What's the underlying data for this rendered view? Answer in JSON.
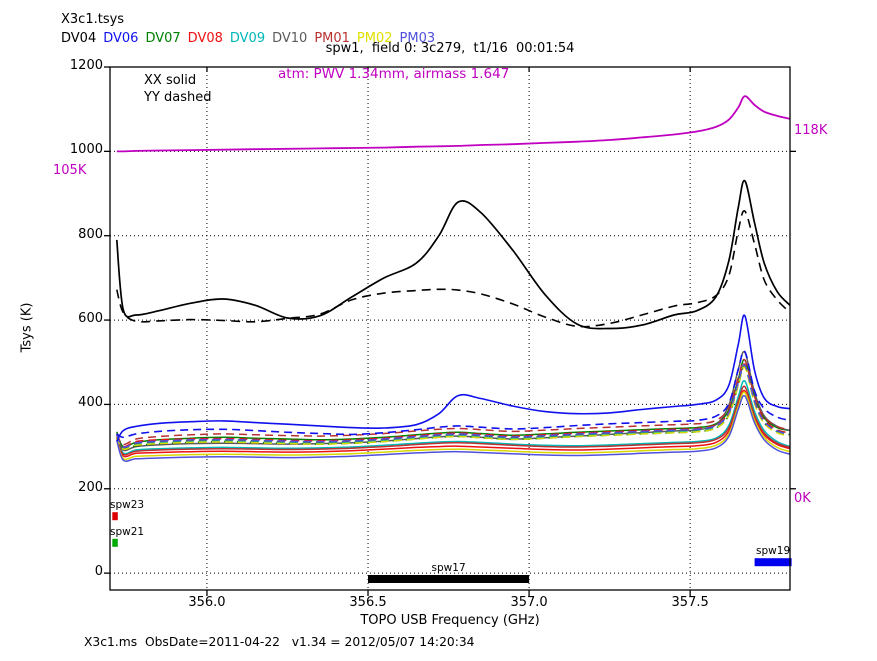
{
  "header": {
    "title": "X3c1.tsys",
    "antennas": [
      {
        "label": "DV04",
        "color": "#000000"
      },
      {
        "label": "DV06",
        "color": "#1111ee"
      },
      {
        "label": "DV07",
        "color": "#008000"
      },
      {
        "label": "DV08",
        "color": "#ee1111"
      },
      {
        "label": "DV09",
        "color": "#00b8b8"
      },
      {
        "label": "DV10",
        "color": "#5a5a5a"
      },
      {
        "label": "PM01",
        "color": "#b83232"
      },
      {
        "label": "PM02",
        "color": "#e0e000"
      },
      {
        "label": "PM03",
        "color": "#5050dd"
      }
    ],
    "subtitle": "spw1,  field 0: 3c279,  t1/16  00:01:54"
  },
  "annotations": {
    "atm_note": "atm: PWV 1.34mm, airmass 1.647",
    "xx_solid": "XX solid",
    "yy_dashed": "YY dashed",
    "atm_left_label": "105K",
    "atm_right_top_label": "118K",
    "atm_right_bottom_label": "0K"
  },
  "footer": "X3c1.ms  ObsDate=2011-04-22   v1.34 = 2012/05/07 14:20:34",
  "chart_data": {
    "type": "line",
    "title": "spw1,  field 0: 3c279,  t1/16  00:01:54",
    "xlabel": "TOPO USB Frequency (GHz)",
    "ylabel": "Tsys (K)",
    "xlim": [
      355.699,
      357.81
    ],
    "ylim": [
      -40,
      1200
    ],
    "x_ticks": [
      356.0,
      356.5,
      357.0,
      357.5
    ],
    "x_tick_labels": [
      "356.0",
      "356.5",
      "357.0",
      "357.5"
    ],
    "y_ticks": [
      0,
      200,
      400,
      600,
      800,
      1000,
      1200
    ],
    "y_tick_labels": [
      "0",
      "200",
      "400",
      "600",
      "800",
      "1000",
      "1200"
    ],
    "grid": true,
    "legend_position": "top-left-outside",
    "atm_axis": {
      "ticks": [
        {
          "tsys": 1000,
          "label": "118K"
        },
        {
          "tsys": 200,
          "label": "0K"
        }
      ]
    },
    "x": [
      355.72,
      355.74,
      355.78,
      355.85,
      355.95,
      356.05,
      356.15,
      356.25,
      356.35,
      356.45,
      356.55,
      356.65,
      356.72,
      356.78,
      356.85,
      356.95,
      357.05,
      357.15,
      357.25,
      357.35,
      357.45,
      357.52,
      357.58,
      357.62,
      357.65,
      357.67,
      357.7,
      357.73,
      357.77,
      357.81
    ],
    "series": [
      {
        "name": "DV07 XX",
        "antenna": "DV07",
        "pol": "XX",
        "color": "#008000",
        "dash": "",
        "width": 1.5,
        "y": [
          335,
          300,
          310,
          316,
          320,
          322,
          320,
          318,
          316,
          318,
          322,
          328,
          332,
          334,
          331,
          327,
          330,
          334,
          337,
          340,
          343,
          345,
          354,
          387,
          462,
          505,
          420,
          368,
          345,
          338
        ]
      },
      {
        "name": "DV08 XX",
        "antenna": "DV08",
        "pol": "XX",
        "color": "#ee1111",
        "dash": "",
        "width": 1.5,
        "y": [
          320,
          278,
          284,
          286,
          288,
          289,
          288,
          287,
          288,
          290,
          294,
          298,
          300,
          301,
          299,
          296,
          293,
          292,
          294,
          297,
          300,
          302,
          310,
          337,
          402,
          432,
          368,
          328,
          305,
          295
        ]
      },
      {
        "name": "DV09 XX",
        "antenna": "DV09",
        "pol": "XX",
        "color": "#00b8b8",
        "dash": "",
        "width": 1.5,
        "y": [
          330,
          285,
          292,
          295,
          297,
          298,
          297,
          296,
          297,
          299,
          303,
          308,
          311,
          312,
          310,
          306,
          303,
          302,
          304,
          307,
          310,
          312,
          320,
          350,
          420,
          455,
          383,
          338,
          312,
          300
        ]
      },
      {
        "name": "DV10 XX",
        "antenna": "DV10",
        "pol": "XX",
        "color": "#5a5a5a",
        "dash": "",
        "width": 1.5,
        "y": [
          332,
          292,
          300,
          304,
          307,
          308,
          307,
          306,
          307,
          309,
          313,
          319,
          323,
          325,
          322,
          318,
          321,
          325,
          329,
          333,
          337,
          340,
          352,
          398,
          485,
          523,
          428,
          373,
          348,
          338
        ]
      },
      {
        "name": "PM01 XX",
        "antenna": "PM01",
        "pol": "XX",
        "color": "#b83232",
        "dash": "",
        "width": 1.5,
        "y": [
          322,
          282,
          289,
          292,
          294,
          295,
          294,
          293,
          294,
          296,
          300,
          305,
          308,
          309,
          307,
          303,
          300,
          299,
          301,
          304,
          307,
          309,
          317,
          344,
          410,
          442,
          374,
          332,
          308,
          298
        ]
      },
      {
        "name": "PM02 XX",
        "antenna": "PM02",
        "pol": "XX",
        "color": "#d8d800",
        "dash": "",
        "width": 1.5,
        "y": [
          318,
          272,
          277,
          279,
          281,
          282,
          281,
          280,
          281,
          283,
          287,
          291,
          293,
          294,
          292,
          289,
          286,
          285,
          287,
          290,
          293,
          295,
          303,
          330,
          397,
          428,
          362,
          322,
          298,
          288
        ]
      },
      {
        "name": "PM03 XX",
        "antenna": "PM03",
        "pol": "XX",
        "color": "#5050dd",
        "dash": "",
        "width": 1.5,
        "y": [
          315,
          268,
          271,
          273,
          275,
          276,
          275,
          274,
          275,
          277,
          281,
          285,
          287,
          288,
          286,
          283,
          280,
          279,
          281,
          284,
          287,
          289,
          297,
          324,
          390,
          420,
          356,
          316,
          292,
          282
        ]
      },
      {
        "name": "DV07 YY",
        "antenna": "DV07",
        "pol": "YY",
        "color": "#008000",
        "dash": "8 5",
        "width": 1.5,
        "y": [
          328,
          295,
          302,
          307,
          310,
          312,
          310,
          308,
          306,
          308,
          312,
          318,
          322,
          324,
          321,
          317,
          320,
          324,
          327,
          330,
          333,
          335,
          344,
          374,
          447,
          488,
          405,
          356,
          335,
          328
        ]
      },
      {
        "name": "DV08 YY",
        "antenna": "DV08",
        "pol": "YY",
        "color": "#ee1111",
        "dash": "8 5",
        "width": 1.5,
        "y": [
          325,
          300,
          312,
          316,
          318,
          319,
          317,
          315,
          314,
          316,
          320,
          326,
          330,
          332,
          329,
          325,
          328,
          332,
          335,
          338,
          341,
          343,
          352,
          382,
          455,
          495,
          410,
          363,
          340,
          332
        ]
      },
      {
        "name": "DV09 YY",
        "antenna": "DV09",
        "pol": "YY",
        "color": "#00b8b8",
        "dash": "8 5",
        "width": 1.5,
        "y": [
          326,
          296,
          305,
          309,
          312,
          313,
          311,
          309,
          308,
          310,
          314,
          320,
          324,
          326,
          323,
          319,
          322,
          326,
          329,
          332,
          335,
          337,
          346,
          376,
          450,
          490,
          406,
          359,
          336,
          328
        ]
      },
      {
        "name": "DV10 YY",
        "antenna": "DV10",
        "pol": "YY",
        "color": "#5a5a5a",
        "dash": "8 5",
        "width": 1.5,
        "y": [
          328,
          298,
          308,
          312,
          315,
          316,
          314,
          312,
          311,
          313,
          317,
          323,
          327,
          329,
          326,
          322,
          325,
          329,
          332,
          335,
          338,
          340,
          349,
          379,
          452,
          492,
          408,
          360,
          338,
          330
        ]
      },
      {
        "name": "PM01 YY",
        "antenna": "PM01",
        "pol": "YY",
        "color": "#b83232",
        "dash": "8 5",
        "width": 1.5,
        "y": [
          330,
          305,
          318,
          324,
          328,
          330,
          328,
          326,
          325,
          327,
          331,
          337,
          341,
          343,
          340,
          336,
          339,
          343,
          346,
          349,
          352,
          354,
          362,
          392,
          465,
          505,
          418,
          370,
          348,
          340
        ]
      },
      {
        "name": "PM02 YY",
        "antenna": "PM02",
        "pol": "YY",
        "color": "#d8d800",
        "dash": "8 5",
        "width": 1.5,
        "y": [
          324,
          294,
          303,
          307,
          310,
          311,
          309,
          307,
          306,
          308,
          312,
          318,
          322,
          324,
          321,
          317,
          320,
          324,
          327,
          330,
          333,
          335,
          344,
          374,
          448,
          487,
          402,
          355,
          333,
          325
        ]
      },
      {
        "name": "PM03 YY",
        "antenna": "PM03",
        "pol": "YY",
        "color": "#5050dd",
        "dash": "8 5",
        "width": 1.5,
        "y": [
          327,
          299,
          309,
          313,
          316,
          317,
          315,
          313,
          312,
          314,
          318,
          324,
          328,
          330,
          327,
          323,
          326,
          330,
          333,
          336,
          339,
          341,
          350,
          380,
          454,
          493,
          407,
          359,
          337,
          329
        ]
      },
      {
        "name": "DV06 YY",
        "antenna": "DV06",
        "pol": "YY",
        "color": "#1111ee",
        "dash": "8 5",
        "width": 1.6,
        "y": [
          330,
          322,
          330,
          336,
          340,
          341,
          338,
          334,
          331,
          329,
          333,
          340,
          346,
          349,
          346,
          342,
          345,
          350,
          354,
          357,
          360,
          362,
          372,
          402,
          485,
          525,
          432,
          390,
          370,
          362
        ]
      },
      {
        "name": "DV06 XX",
        "antenna": "DV06",
        "pol": "XX",
        "color": "#1111ee",
        "dash": "",
        "width": 1.6,
        "y": [
          312,
          338,
          348,
          355,
          359,
          361,
          357,
          353,
          349,
          345,
          344,
          352,
          378,
          421,
          414,
          396,
          383,
          378,
          380,
          388,
          395,
          400,
          410,
          445,
          545,
          610,
          480,
          415,
          395,
          390
        ]
      },
      {
        "name": "DV04 YY",
        "antenna": "DV04",
        "pol": "YY",
        "color": "#000000",
        "dash": "9 6",
        "width": 1.6,
        "y": [
          672,
          618,
          597,
          598,
          601,
          599,
          596,
          604,
          614,
          648,
          664,
          670,
          673,
          671,
          662,
          638,
          607,
          585,
          592,
          612,
          633,
          641,
          658,
          705,
          815,
          858,
          780,
          695,
          648,
          618
        ]
      },
      {
        "name": "DV04 XX",
        "antenna": "DV04",
        "pol": "XX",
        "color": "#000000",
        "dash": "",
        "width": 1.7,
        "y": [
          790,
          625,
          612,
          622,
          640,
          650,
          635,
          605,
          610,
          655,
          700,
          735,
          800,
          880,
          855,
          765,
          660,
          590,
          580,
          588,
          612,
          622,
          655,
          740,
          870,
          930,
          830,
          735,
          668,
          635
        ]
      },
      {
        "name": "atm transmission",
        "antenna": "atm",
        "pol": "",
        "color": "#c000c0",
        "dash": "",
        "width": 1.8,
        "y": [
          1000,
          1000,
          1001,
          1002,
          1003,
          1004,
          1005,
          1006,
          1007,
          1008,
          1009,
          1011,
          1012,
          1013,
          1015,
          1017,
          1020,
          1023,
          1027,
          1033,
          1040,
          1047,
          1058,
          1075,
          1105,
          1131,
          1110,
          1094,
          1084,
          1077
        ]
      }
    ],
    "spans": [
      {
        "label": "spw23",
        "f0": 355.706,
        "f1": 355.723,
        "k": 135,
        "color": "#dd0000",
        "anchor": "left"
      },
      {
        "label": "spw21",
        "f0": 355.706,
        "f1": 355.723,
        "k": 72,
        "color": "#00aa00",
        "anchor": "left"
      },
      {
        "label": "spw17",
        "f0": 356.5,
        "f1": 357.0,
        "k": -14,
        "color": "#000000",
        "anchor": "center"
      },
      {
        "label": "spw19",
        "f0": 357.7,
        "f1": 357.815,
        "k": 26,
        "color": "#0000ee",
        "anchor": "center"
      }
    ]
  }
}
